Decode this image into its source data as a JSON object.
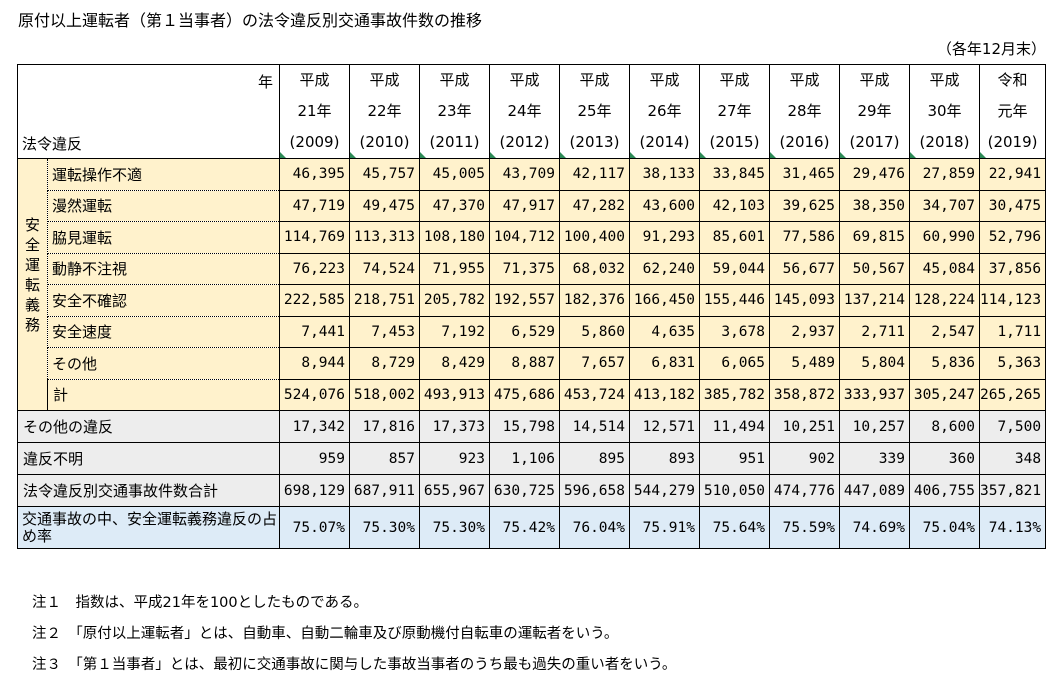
{
  "title": "原付以上運転者（第１当事者）の法令違反別交通事故件数の推移",
  "unit_note": "（各年12月末）",
  "header": {
    "nen_label": "年",
    "hourei_label": "法令違反",
    "years": [
      {
        "era": "平成",
        "y": "21年",
        "ad": "(2009)"
      },
      {
        "era": "平成",
        "y": "22年",
        "ad": "(2010)"
      },
      {
        "era": "平成",
        "y": "23年",
        "ad": "(2011)"
      },
      {
        "era": "平成",
        "y": "24年",
        "ad": "(2012)"
      },
      {
        "era": "平成",
        "y": "25年",
        "ad": "(2013)"
      },
      {
        "era": "平成",
        "y": "26年",
        "ad": "(2014)"
      },
      {
        "era": "平成",
        "y": "27年",
        "ad": "(2015)"
      },
      {
        "era": "平成",
        "y": "28年",
        "ad": "(2016)"
      },
      {
        "era": "平成",
        "y": "29年",
        "ad": "(2017)"
      },
      {
        "era": "平成",
        "y": "30年",
        "ad": "(2018)"
      },
      {
        "era": "令和",
        "y": "元年",
        "ad": "(2019)"
      }
    ]
  },
  "group_label": "安全運転義務",
  "safety_rows": [
    {
      "label": "運転操作不適",
      "values": [
        "46,395",
        "45,757",
        "45,005",
        "43,709",
        "42,117",
        "38,133",
        "33,845",
        "31,465",
        "29,476",
        "27,859",
        "22,941"
      ]
    },
    {
      "label": "漫然運転",
      "values": [
        "47,719",
        "49,475",
        "47,370",
        "47,917",
        "47,282",
        "43,600",
        "42,103",
        "39,625",
        "38,350",
        "34,707",
        "30,475"
      ]
    },
    {
      "label": "脇見運転",
      "values": [
        "114,769",
        "113,313",
        "108,180",
        "104,712",
        "100,400",
        "91,293",
        "85,601",
        "77,586",
        "69,815",
        "60,990",
        "52,796"
      ]
    },
    {
      "label": "動静不注視",
      "values": [
        "76,223",
        "74,524",
        "71,955",
        "71,375",
        "68,032",
        "62,240",
        "59,044",
        "56,677",
        "50,567",
        "45,084",
        "37,856"
      ]
    },
    {
      "label": "安全不確認",
      "values": [
        "222,585",
        "218,751",
        "205,782",
        "192,557",
        "182,376",
        "166,450",
        "155,446",
        "145,093",
        "137,214",
        "128,224",
        "114,123"
      ]
    },
    {
      "label": "安全速度",
      "values": [
        "7,441",
        "7,453",
        "7,192",
        "6,529",
        "5,860",
        "4,635",
        "3,678",
        "2,937",
        "2,711",
        "2,547",
        "1,711"
      ]
    },
    {
      "label": "その他",
      "values": [
        "8,944",
        "8,729",
        "8,429",
        "8,887",
        "7,657",
        "6,831",
        "6,065",
        "5,489",
        "5,804",
        "5,836",
        "5,363"
      ]
    }
  ],
  "subtotal": {
    "label": "計",
    "values": [
      "524,076",
      "518,002",
      "493,913",
      "475,686",
      "453,724",
      "413,182",
      "385,782",
      "358,872",
      "333,937",
      "305,247",
      "265,265"
    ]
  },
  "other_rows": [
    {
      "label": "その他の違反",
      "values": [
        "17,342",
        "17,816",
        "17,373",
        "15,798",
        "14,514",
        "12,571",
        "11,494",
        "10,251",
        "10,257",
        "8,600",
        "7,500"
      ]
    },
    {
      "label": "違反不明",
      "values": [
        "959",
        "857",
        "923",
        "1,106",
        "895",
        "893",
        "951",
        "902",
        "339",
        "360",
        "348"
      ]
    },
    {
      "label": "法令違反別交通事故件数合計",
      "values": [
        "698,129",
        "687,911",
        "655,967",
        "630,725",
        "596,658",
        "544,279",
        "510,050",
        "474,776",
        "447,089",
        "406,755",
        "357,821"
      ]
    }
  ],
  "ratio_row": {
    "label": "交通事故の中、安全運転義務違反の占め率",
    "values": [
      "75.07%",
      "75.30%",
      "75.30%",
      "75.42%",
      "76.04%",
      "75.91%",
      "75.64%",
      "75.59%",
      "74.69%",
      "75.04%",
      "74.13%"
    ]
  },
  "notes": [
    "注１　指数は、平成21年を100としたものである。",
    "注２　「原付以上運転者」とは、自動車、自動二輪車及び原動機付自転車の運転者をいう。",
    "注３　「第１当事者」とは、最初に交通事故に関与した事故当事者のうち最も過失の重い者をいう。"
  ]
}
